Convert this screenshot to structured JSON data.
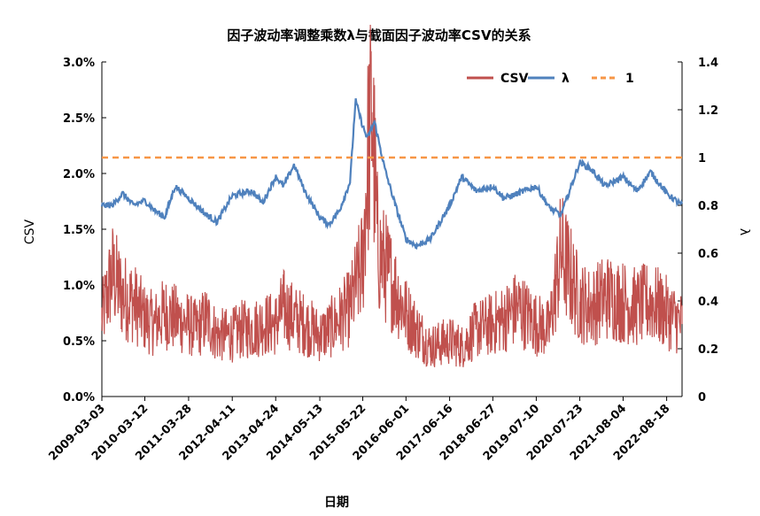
{
  "chart_data": {
    "type": "line",
    "title": "因子波动率调整乘数λ与截面因子波动率CSV的关系",
    "xlabel": "日期",
    "ylabel_left": "CSV",
    "ylabel_right": "λ",
    "x_ticks": [
      "2009-03-03",
      "2010-03-12",
      "2011-03-28",
      "2012-04-11",
      "2013-04-24",
      "2014-05-13",
      "2015-05-22",
      "2016-06-01",
      "2017-06-16",
      "2018-06-27",
      "2019-07-10",
      "2020-07-23",
      "2021-08-04",
      "2022-08-18"
    ],
    "y_left_ticks": [
      "0.0%",
      "0.5%",
      "1.0%",
      "1.5%",
      "2.0%",
      "2.5%",
      "3.0%"
    ],
    "y_left_range": [
      0,
      0.03
    ],
    "y_right_ticks": [
      "0",
      "0.2",
      "0.4",
      "0.6",
      "0.8",
      "1",
      "1.2",
      "1.4"
    ],
    "y_right_range": [
      0,
      1.4
    ],
    "legend_position": "top-right",
    "series": [
      {
        "name": "CSV",
        "axis": "left",
        "color": "#c0504d",
        "style": "solid",
        "values": [
          [
            "2009-03-03",
            0.007
          ],
          [
            "2009-06-01",
            0.011
          ],
          [
            "2009-09-01",
            0.009
          ],
          [
            "2009-12-01",
            0.0085
          ],
          [
            "2010-03-12",
            0.007
          ],
          [
            "2010-06-01",
            0.0065
          ],
          [
            "2010-09-01",
            0.0075
          ],
          [
            "2010-12-01",
            0.007
          ],
          [
            "2011-03-28",
            0.0065
          ],
          [
            "2011-06-01",
            0.006
          ],
          [
            "2011-09-01",
            0.007
          ],
          [
            "2011-12-01",
            0.0055
          ],
          [
            "2012-04-11",
            0.0055
          ],
          [
            "2012-07-01",
            0.006
          ],
          [
            "2012-10-01",
            0.006
          ],
          [
            "2013-01-01",
            0.0065
          ],
          [
            "2013-04-24",
            0.0065
          ],
          [
            "2013-07-01",
            0.008
          ],
          [
            "2013-10-01",
            0.007
          ],
          [
            "2014-01-01",
            0.0065
          ],
          [
            "2014-05-13",
            0.0055
          ],
          [
            "2014-08-01",
            0.006
          ],
          [
            "2014-11-01",
            0.007
          ],
          [
            "2015-02-01",
            0.008
          ],
          [
            "2015-05-22",
            0.012
          ],
          [
            "2015-07-01",
            0.021
          ],
          [
            "2015-08-10",
            0.0255
          ],
          [
            "2015-10-01",
            0.013
          ],
          [
            "2016-01-01",
            0.011
          ],
          [
            "2016-06-01",
            0.0075
          ],
          [
            "2016-09-01",
            0.006
          ],
          [
            "2017-01-01",
            0.0045
          ],
          [
            "2017-06-16",
            0.005
          ],
          [
            "2017-10-01",
            0.0045
          ],
          [
            "2018-02-01",
            0.006
          ],
          [
            "2018-06-27",
            0.0065
          ],
          [
            "2018-10-01",
            0.007
          ],
          [
            "2019-02-01",
            0.008
          ],
          [
            "2019-07-10",
            0.0065
          ],
          [
            "2019-11-01",
            0.006
          ],
          [
            "2020-02-10",
            0.013
          ],
          [
            "2020-07-23",
            0.0085
          ],
          [
            "2020-11-01",
            0.008
          ],
          [
            "2021-03-01",
            0.009
          ],
          [
            "2021-08-04",
            0.0085
          ],
          [
            "2021-12-01",
            0.008
          ],
          [
            "2022-04-01",
            0.0085
          ],
          [
            "2022-08-18",
            0.0075
          ],
          [
            "2022-12-30",
            0.0065
          ]
        ]
      },
      {
        "name": "λ",
        "axis": "right",
        "color": "#4f81bd",
        "style": "solid",
        "values": [
          [
            "2009-03-03",
            0.8
          ],
          [
            "2009-06-01",
            0.8
          ],
          [
            "2009-09-01",
            0.85
          ],
          [
            "2009-12-01",
            0.8
          ],
          [
            "2010-03-12",
            0.82
          ],
          [
            "2010-06-01",
            0.78
          ],
          [
            "2010-09-01",
            0.75
          ],
          [
            "2010-12-01",
            0.88
          ],
          [
            "2011-03-28",
            0.83
          ],
          [
            "2011-06-01",
            0.8
          ],
          [
            "2011-09-01",
            0.76
          ],
          [
            "2011-12-01",
            0.73
          ],
          [
            "2012-04-11",
            0.84
          ],
          [
            "2012-07-01",
            0.85
          ],
          [
            "2012-10-01",
            0.86
          ],
          [
            "2013-01-01",
            0.81
          ],
          [
            "2013-04-24",
            0.92
          ],
          [
            "2013-07-01",
            0.88
          ],
          [
            "2013-10-01",
            0.97
          ],
          [
            "2014-01-01",
            0.86
          ],
          [
            "2014-05-13",
            0.75
          ],
          [
            "2014-08-01",
            0.72
          ],
          [
            "2014-11-01",
            0.78
          ],
          [
            "2015-02-01",
            0.9
          ],
          [
            "2015-03-20",
            1.24
          ],
          [
            "2015-05-22",
            1.13
          ],
          [
            "2015-07-01",
            1.08
          ],
          [
            "2015-09-01",
            1.15
          ],
          [
            "2015-12-01",
            0.95
          ],
          [
            "2016-03-01",
            0.8
          ],
          [
            "2016-06-01",
            0.66
          ],
          [
            "2016-09-01",
            0.63
          ],
          [
            "2017-01-01",
            0.66
          ],
          [
            "2017-06-16",
            0.8
          ],
          [
            "2017-10-01",
            0.92
          ],
          [
            "2018-02-01",
            0.86
          ],
          [
            "2018-06-27",
            0.88
          ],
          [
            "2018-10-01",
            0.83
          ],
          [
            "2019-02-01",
            0.85
          ],
          [
            "2019-07-10",
            0.88
          ],
          [
            "2019-11-01",
            0.79
          ],
          [
            "2020-02-10",
            0.76
          ],
          [
            "2020-07-23",
            0.98
          ],
          [
            "2020-11-01",
            0.95
          ],
          [
            "2021-03-01",
            0.88
          ],
          [
            "2021-08-04",
            0.92
          ],
          [
            "2021-12-01",
            0.86
          ],
          [
            "2022-04-01",
            0.94
          ],
          [
            "2022-08-18",
            0.85
          ],
          [
            "2022-12-30",
            0.8
          ]
        ]
      },
      {
        "name": "1",
        "axis": "right",
        "color": "#f79646",
        "style": "dashed",
        "values": [
          [
            "2009-03-03",
            1
          ],
          [
            "2022-12-30",
            1
          ]
        ]
      }
    ]
  }
}
